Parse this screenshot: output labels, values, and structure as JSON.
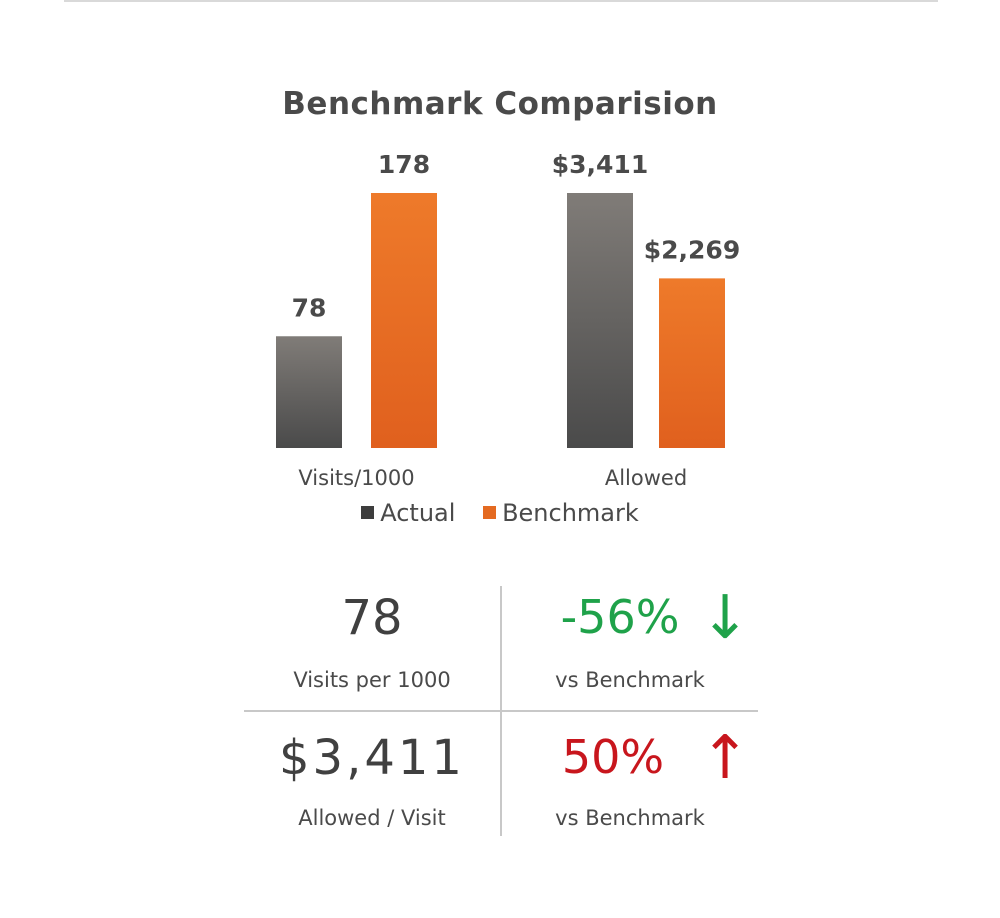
{
  "chart_data": {
    "type": "bar",
    "title": "Benchmark Comparision",
    "categories": [
      "Visits/1000",
      "Allowed"
    ],
    "series": [
      {
        "name": "Actual",
        "values": [
          78,
          3411
        ],
        "labels": [
          "78",
          "$3,411"
        ],
        "color": "#3d3d3d"
      },
      {
        "name": "Benchmark",
        "values": [
          178,
          2269
        ],
        "labels": [
          "178",
          "$2,269"
        ],
        "color": "#e46a21"
      }
    ],
    "legend_position": "bottom",
    "grid": false,
    "axes_visible": false,
    "note": "Each category uses its own vertical scale"
  },
  "stats": {
    "visits_value": "78",
    "visits_label": "Visits per 1000",
    "visits_change": "-56%",
    "visits_change_label": "vs Benchmark",
    "visits_arrow": "↓",
    "visits_color": "#1fa24a",
    "allowed_value": "$3,411",
    "allowed_label": "Allowed / Visit",
    "allowed_change": "50%",
    "allowed_change_label": "vs Benchmark",
    "allowed_arrow": "↑",
    "allowed_color": "#c8161d"
  }
}
